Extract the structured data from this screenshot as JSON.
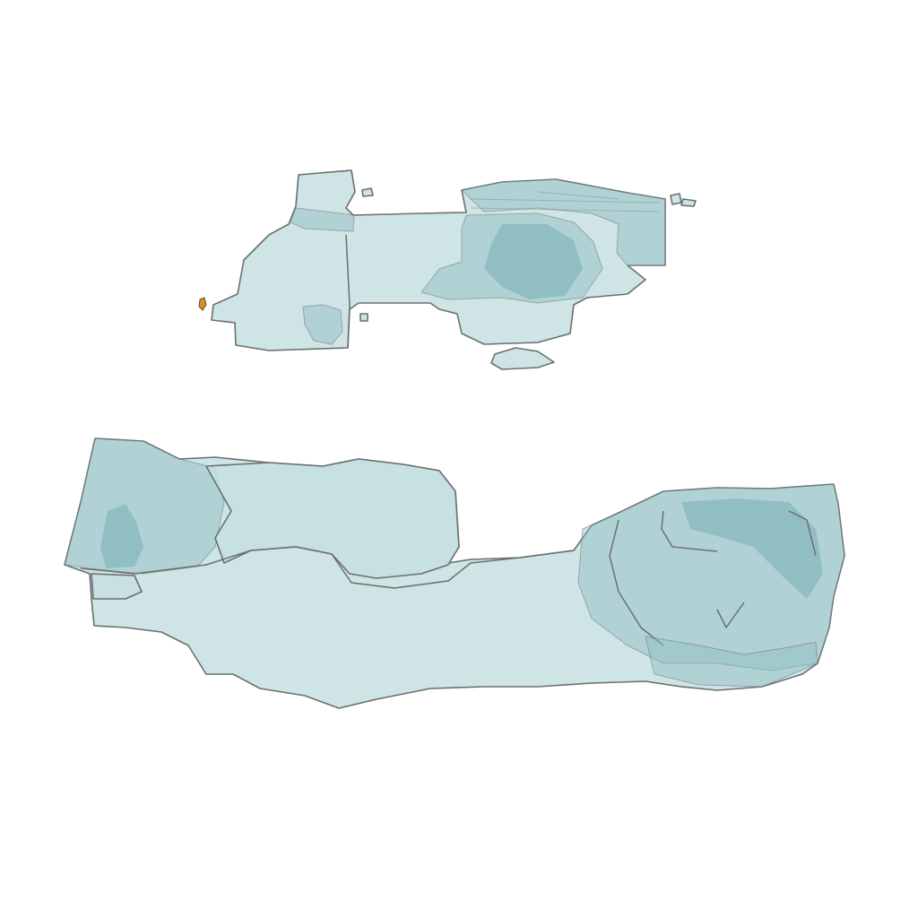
{
  "scene": {
    "background": "#ffffff",
    "surface_fill": "#c5dfe0",
    "surface_fill_dark": "#8fbcc0",
    "surface_fill_deep": "#6aa6ab",
    "outline_color": "#6b6f70",
    "accent_fleck_color": "#d98c2b",
    "objects": [
      {
        "id": "upper-mesh",
        "kind": "translucent 3D surface mesh"
      },
      {
        "id": "lower-mesh",
        "kind": "translucent 3D surface mesh"
      },
      {
        "id": "orange-fleck",
        "kind": "small opaque fragment"
      }
    ]
  }
}
